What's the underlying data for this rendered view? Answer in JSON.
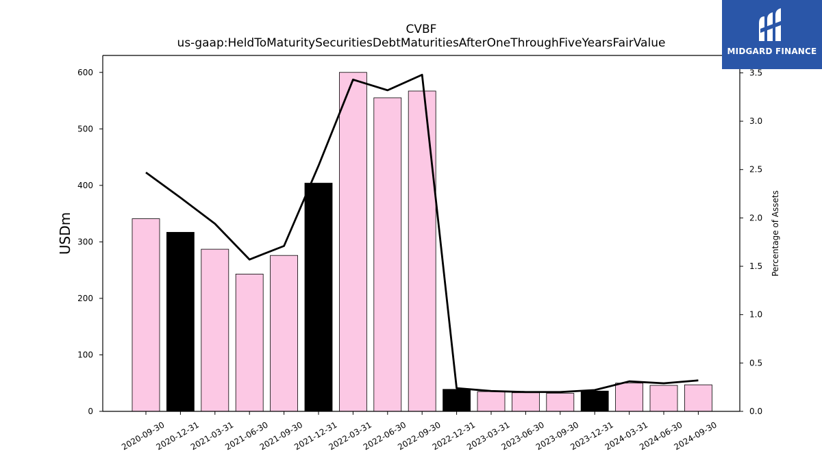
{
  "chart_data": {
    "type": "bar",
    "title": "CVBF",
    "subtitle": "us-gaap:HeldToMaturitySecuritiesDebtMaturitiesAfterOneThroughFiveYearsFairValue",
    "ylabel": "USDm",
    "y2label": "Percentage of Assets",
    "ylim": [
      0,
      630
    ],
    "y2lim": [
      0,
      3.68
    ],
    "yticks": [
      0,
      100,
      200,
      300,
      400,
      500,
      600
    ],
    "y2ticks": [
      "0.0",
      "0.5",
      "1.0",
      "1.5",
      "2.0",
      "2.5",
      "3.0",
      "3.5"
    ],
    "categories": [
      "2020-09-30",
      "2020-12-31",
      "2021-03-31",
      "2021-06-30",
      "2021-09-30",
      "2021-12-31",
      "2022-03-31",
      "2022-06-30",
      "2022-09-30",
      "2022-12-31",
      "2023-03-31",
      "2023-06-30",
      "2023-09-30",
      "2023-12-31",
      "2024-03-31",
      "2024-06-30",
      "2024-09-30"
    ],
    "series": [
      {
        "values": [
          341,
          317,
          287,
          243,
          276,
          404,
          600,
          555,
          567,
          39,
          35,
          33,
          32,
          36,
          50,
          46,
          47
        ],
        "highlight": [
          false,
          true,
          false,
          false,
          false,
          true,
          false,
          false,
          false,
          true,
          false,
          false,
          false,
          true,
          false,
          false,
          false
        ],
        "axis": "left"
      },
      {
        "values": [
          2.47,
          2.21,
          1.94,
          1.57,
          1.71,
          2.54,
          3.43,
          3.32,
          3.48,
          0.24,
          0.21,
          0.2,
          0.2,
          0.22,
          0.31,
          0.29,
          0.32
        ],
        "axis": "right"
      }
    ],
    "colors": {
      "bar": "#fcc8e4",
      "bar_highlight": "#000000",
      "line": "#000000"
    },
    "grid": false
  },
  "logo": {
    "text": "MIDGARD FINANCE",
    "bg": "#2a56a8"
  }
}
